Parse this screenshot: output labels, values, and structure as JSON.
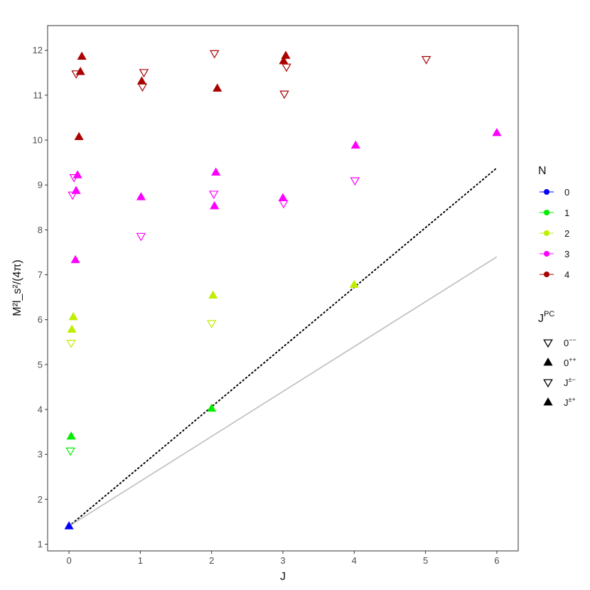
{
  "chart_data": {
    "type": "scatter",
    "xlabel": "J",
    "ylabel": "M²l_s²/(4π)",
    "xlim": [
      -0.3,
      6.3
    ],
    "ylim": [
      0.85,
      12.55
    ],
    "xticks": [
      "0",
      "1",
      "2",
      "3",
      "4",
      "5",
      "6"
    ],
    "yticks": [
      "1",
      "2",
      "3",
      "4",
      "5",
      "6",
      "7",
      "8",
      "9",
      "10",
      "11",
      "12"
    ],
    "grid": false,
    "legend_placement": "right",
    "legend_n": {
      "title": "N",
      "entries": [
        {
          "label": "0",
          "color": "#0000ff"
        },
        {
          "label": "1",
          "color": "#00ee00"
        },
        {
          "label": "2",
          "color": "#c0ee00"
        },
        {
          "label": "3",
          "color": "#ff00ff"
        },
        {
          "label": "4",
          "color": "#aa0000"
        }
      ]
    },
    "legend_jpc": {
      "title_main": "J",
      "title_sup": "PC",
      "entries": [
        {
          "main": "0",
          "sup": "−−",
          "marker": "triangle-down-open"
        },
        {
          "main": "0",
          "sup": "++",
          "marker": "triangle-up-filled"
        },
        {
          "main": "J",
          "sup": "±−",
          "marker": "triangle-down-open"
        },
        {
          "main": "J",
          "sup": "±+",
          "marker": "triangle-up-filled"
        }
      ]
    },
    "lines": [
      {
        "style": "dotted",
        "color": "#000000",
        "x": [
          0,
          6
        ],
        "y": [
          1.4,
          9.38
        ]
      },
      {
        "style": "solid",
        "color": "#bdbdbd",
        "x": [
          0,
          6
        ],
        "y": [
          1.4,
          7.4
        ]
      }
    ],
    "points": [
      {
        "x": 0.0,
        "y": 1.4,
        "n": 0,
        "marker": "up"
      },
      {
        "x": 0.02,
        "y": 3.08,
        "n": 1,
        "marker": "down"
      },
      {
        "x": 0.03,
        "y": 3.4,
        "n": 1,
        "marker": "up"
      },
      {
        "x": 2.0,
        "y": 4.02,
        "n": 1,
        "marker": "up"
      },
      {
        "x": 0.03,
        "y": 5.48,
        "n": 2,
        "marker": "down"
      },
      {
        "x": 0.04,
        "y": 5.78,
        "n": 2,
        "marker": "up"
      },
      {
        "x": 0.06,
        "y": 6.06,
        "n": 2,
        "marker": "up"
      },
      {
        "x": 2.0,
        "y": 5.92,
        "n": 2,
        "marker": "down"
      },
      {
        "x": 2.02,
        "y": 6.54,
        "n": 2,
        "marker": "up"
      },
      {
        "x": 4.0,
        "y": 6.78,
        "n": 2,
        "marker": "up"
      },
      {
        "x": 0.09,
        "y": 7.33,
        "n": 3,
        "marker": "up"
      },
      {
        "x": 0.05,
        "y": 8.78,
        "n": 3,
        "marker": "down"
      },
      {
        "x": 0.1,
        "y": 8.87,
        "n": 3,
        "marker": "up"
      },
      {
        "x": 0.07,
        "y": 9.17,
        "n": 3,
        "marker": "down"
      },
      {
        "x": 0.12,
        "y": 9.22,
        "n": 3,
        "marker": "up"
      },
      {
        "x": 1.01,
        "y": 7.86,
        "n": 3,
        "marker": "down"
      },
      {
        "x": 1.01,
        "y": 8.73,
        "n": 3,
        "marker": "up"
      },
      {
        "x": 2.04,
        "y": 8.53,
        "n": 3,
        "marker": "up"
      },
      {
        "x": 2.03,
        "y": 8.8,
        "n": 3,
        "marker": "down"
      },
      {
        "x": 2.06,
        "y": 9.28,
        "n": 3,
        "marker": "up"
      },
      {
        "x": 3.01,
        "y": 8.59,
        "n": 3,
        "marker": "down"
      },
      {
        "x": 3.0,
        "y": 8.71,
        "n": 3,
        "marker": "up"
      },
      {
        "x": 4.01,
        "y": 9.1,
        "n": 3,
        "marker": "down"
      },
      {
        "x": 4.02,
        "y": 9.88,
        "n": 3,
        "marker": "up"
      },
      {
        "x": 6.0,
        "y": 10.16,
        "n": 3,
        "marker": "up"
      },
      {
        "x": 0.14,
        "y": 10.07,
        "n": 4,
        "marker": "up"
      },
      {
        "x": 0.1,
        "y": 11.48,
        "n": 4,
        "marker": "down"
      },
      {
        "x": 0.16,
        "y": 11.52,
        "n": 4,
        "marker": "up"
      },
      {
        "x": 0.18,
        "y": 11.86,
        "n": 4,
        "marker": "up"
      },
      {
        "x": 1.03,
        "y": 11.19,
        "n": 4,
        "marker": "down"
      },
      {
        "x": 1.02,
        "y": 11.31,
        "n": 4,
        "marker": "up"
      },
      {
        "x": 1.05,
        "y": 11.51,
        "n": 4,
        "marker": "down"
      },
      {
        "x": 2.08,
        "y": 11.15,
        "n": 4,
        "marker": "up"
      },
      {
        "x": 2.04,
        "y": 11.93,
        "n": 4,
        "marker": "down"
      },
      {
        "x": 3.02,
        "y": 11.03,
        "n": 4,
        "marker": "down"
      },
      {
        "x": 3.01,
        "y": 11.76,
        "n": 4,
        "marker": "up"
      },
      {
        "x": 3.04,
        "y": 11.88,
        "n": 4,
        "marker": "up"
      },
      {
        "x": 3.05,
        "y": 11.63,
        "n": 4,
        "marker": "down"
      },
      {
        "x": 5.01,
        "y": 11.8,
        "n": 4,
        "marker": "down"
      }
    ]
  }
}
